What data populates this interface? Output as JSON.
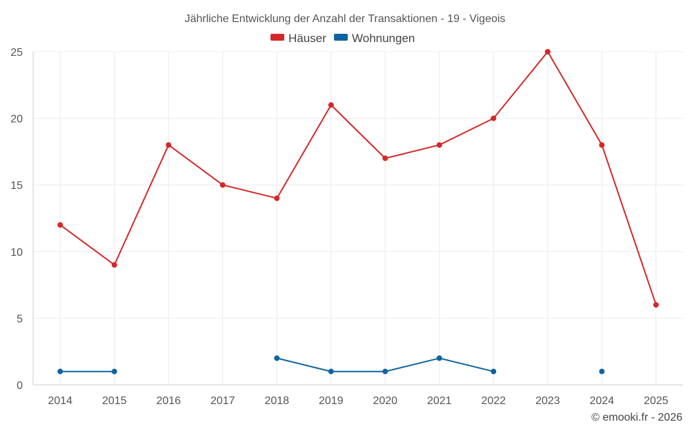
{
  "chart_data": {
    "type": "line",
    "title": "Jährliche Entwicklung der Anzahl der Transaktionen - 19 - Vigeois",
    "x": [
      "2014",
      "2015",
      "2016",
      "2017",
      "2018",
      "2019",
      "2020",
      "2021",
      "2022",
      "2023",
      "2024",
      "2025"
    ],
    "series": [
      {
        "name": "Häuser",
        "color": "#d62728",
        "values": [
          12,
          9,
          18,
          15,
          14,
          21,
          17,
          18,
          20,
          25,
          18,
          6
        ]
      },
      {
        "name": "Wohnungen",
        "color": "#0e64a0",
        "values": [
          1,
          1,
          null,
          null,
          2,
          1,
          1,
          2,
          1,
          null,
          1,
          null
        ]
      }
    ],
    "ylim": [
      0,
      25
    ],
    "yticks": [
      0,
      5,
      10,
      15,
      20,
      25
    ],
    "grid": true,
    "legend_position": "top-center",
    "xlabel": "",
    "ylabel": ""
  },
  "credit": "© emooki.fr - 2026"
}
